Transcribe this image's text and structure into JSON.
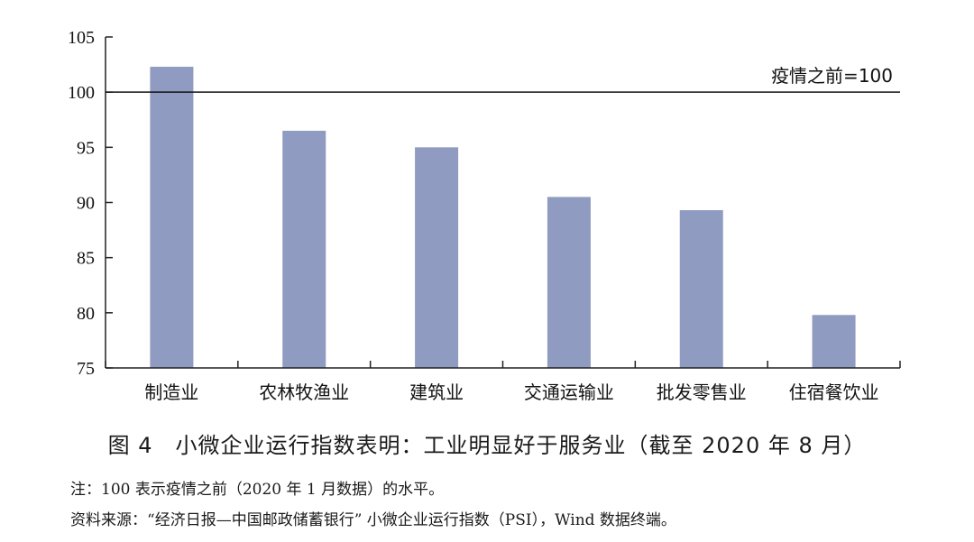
{
  "chart_data": {
    "type": "bar",
    "categories": [
      "制造业",
      "农林牧渔业",
      "建筑业",
      "交通运输业",
      "批发零售业",
      "住宿餐饮业"
    ],
    "values": [
      102.3,
      96.5,
      95.0,
      90.5,
      89.3,
      79.8
    ],
    "ylim": [
      75,
      105
    ],
    "yticks": [
      75,
      80,
      85,
      90,
      95,
      100,
      105
    ],
    "reference_line": {
      "value": 100,
      "label": "疫情之前=100"
    },
    "bar_color": "#8f9bc0",
    "grid": false,
    "legend": "none"
  },
  "caption": "图 4　小微企业运行指数表明：工业明显好于服务业（截至 2020 年 8 月）",
  "notes": {
    "note": "注：100 表示疫情之前（2020 年 1 月数据）的水平。",
    "source": "资料来源：“经济日报—中国邮政储蓄银行” 小微企业运行指数（PSI），Wind 数据终端。"
  }
}
